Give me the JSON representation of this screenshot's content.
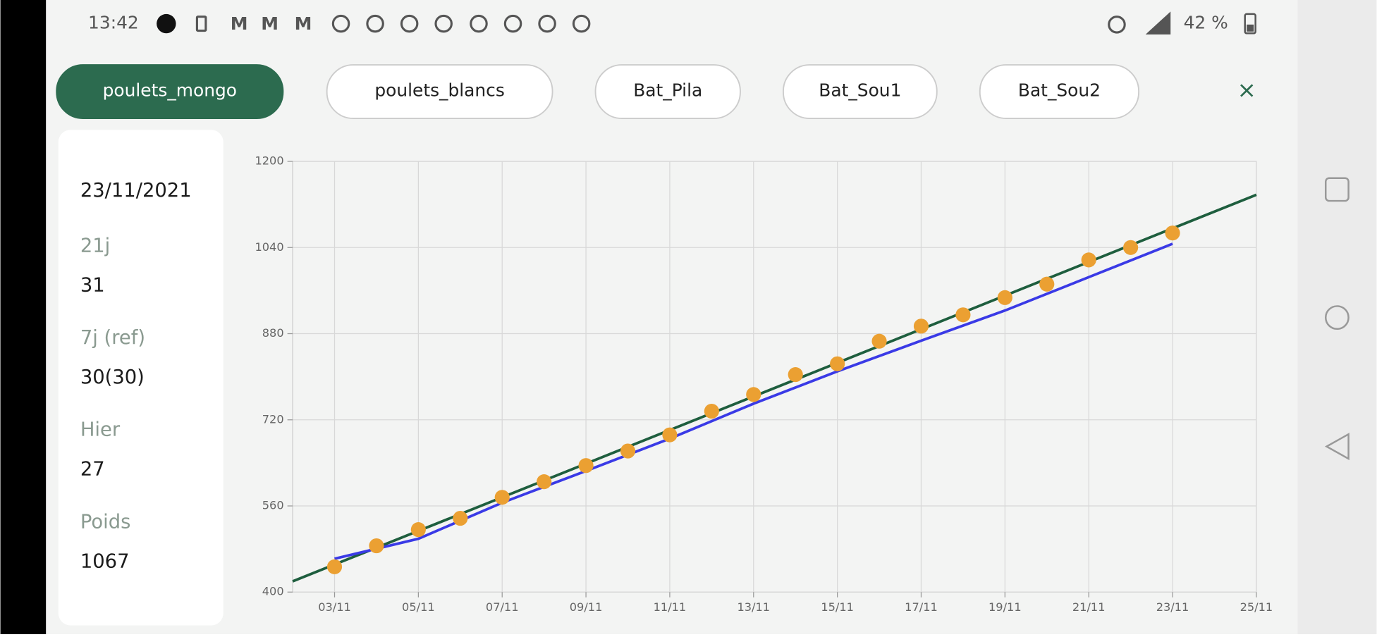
{
  "status": {
    "time": "13:42",
    "battery": "42 %"
  },
  "tabs": [
    "poulets_mongo",
    "poulets_blancs",
    "Bat_Pila",
    "Bat_Sou1",
    "Bat_Sou2"
  ],
  "panel": {
    "date": "23/11/2021",
    "items": [
      {
        "label": "21j",
        "value": "31"
      },
      {
        "label": "7j (ref)",
        "value": "30(30)"
      },
      {
        "label": "Hier",
        "value": "27"
      },
      {
        "label": "Poids",
        "value": "1067"
      }
    ]
  },
  "chart_data": {
    "type": "line",
    "xlim": [
      "02/11",
      "25/11"
    ],
    "xticks": [
      "03/11",
      "05/11",
      "07/11",
      "09/11",
      "11/11",
      "13/11",
      "15/11",
      "17/11",
      "19/11",
      "21/11",
      "23/11",
      "25/11"
    ],
    "ylim": [
      400,
      1200
    ],
    "yticks": [
      400,
      560,
      720,
      880,
      1040,
      1200
    ],
    "grid": true,
    "series": [
      {
        "type": "line",
        "color": "#1e5e3e",
        "x": [
          "02/11",
          "25/11"
        ],
        "values": [
          420,
          1138
        ]
      },
      {
        "type": "line",
        "color": "#3a3ae6",
        "x": [
          "03/11",
          "05/11",
          "07/11",
          "09/11",
          "11/11",
          "13/11",
          "15/11",
          "17/11",
          "19/11",
          "21/11",
          "23/11"
        ],
        "values": [
          462,
          499,
          566,
          625,
          685,
          750,
          810,
          867,
          923,
          985,
          1047
        ]
      },
      {
        "type": "scatter",
        "color": "#eba032",
        "x": [
          "03/11",
          "04/11",
          "05/11",
          "06/11",
          "07/11",
          "08/11",
          "09/11",
          "10/11",
          "11/11",
          "12/11",
          "13/11",
          "14/11",
          "15/11",
          "16/11",
          "17/11",
          "18/11",
          "19/11",
          "20/11",
          "21/11",
          "22/11",
          "23/11"
        ],
        "values": [
          447,
          486,
          516,
          537,
          576,
          605,
          635,
          662,
          692,
          736,
          767,
          804,
          824,
          866,
          894,
          915,
          947,
          972,
          1017,
          1040,
          1067
        ]
      }
    ]
  }
}
